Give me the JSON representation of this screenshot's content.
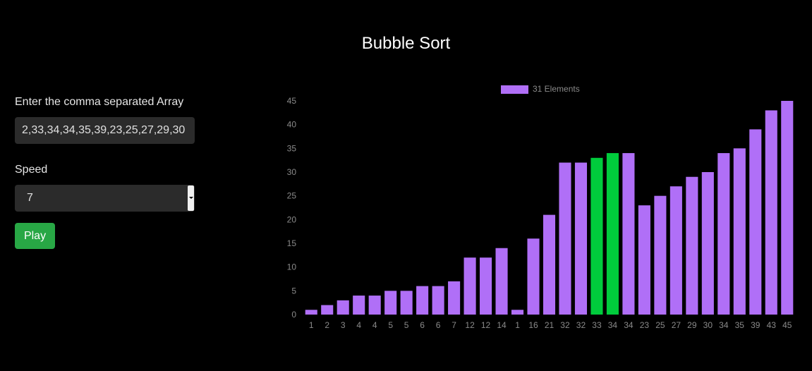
{
  "page": {
    "title": "Bubble Sort"
  },
  "controls": {
    "array_label": "Enter the comma separated Array",
    "array_value": "2,33,34,34,35,39,23,25,27,29,30",
    "speed_label": "Speed",
    "speed_value": "7",
    "play_label": "Play"
  },
  "colors": {
    "bar": "#b06ff7",
    "highlight": "#00cc3c",
    "play": "#28a745",
    "axis_text": "#8a8a8a"
  },
  "chart_data": {
    "type": "bar",
    "legend": "31 Elements",
    "legend_position": "top-center",
    "grid": false,
    "ylim": [
      0,
      45
    ],
    "yticks": [
      0,
      5,
      10,
      15,
      20,
      25,
      30,
      35,
      40,
      45
    ],
    "categories": [
      "1",
      "2",
      "3",
      "4",
      "4",
      "5",
      "5",
      "6",
      "6",
      "7",
      "12",
      "12",
      "14",
      "1",
      "16",
      "21",
      "32",
      "32",
      "33",
      "34",
      "34",
      "23",
      "25",
      "27",
      "29",
      "30",
      "34",
      "35",
      "39",
      "43",
      "45"
    ],
    "values": [
      1,
      2,
      3,
      4,
      4,
      5,
      5,
      6,
      6,
      7,
      12,
      12,
      14,
      1,
      16,
      21,
      32,
      32,
      33,
      34,
      34,
      23,
      25,
      27,
      29,
      30,
      34,
      35,
      39,
      43,
      45
    ],
    "highlighted_indices": [
      18,
      19
    ]
  }
}
